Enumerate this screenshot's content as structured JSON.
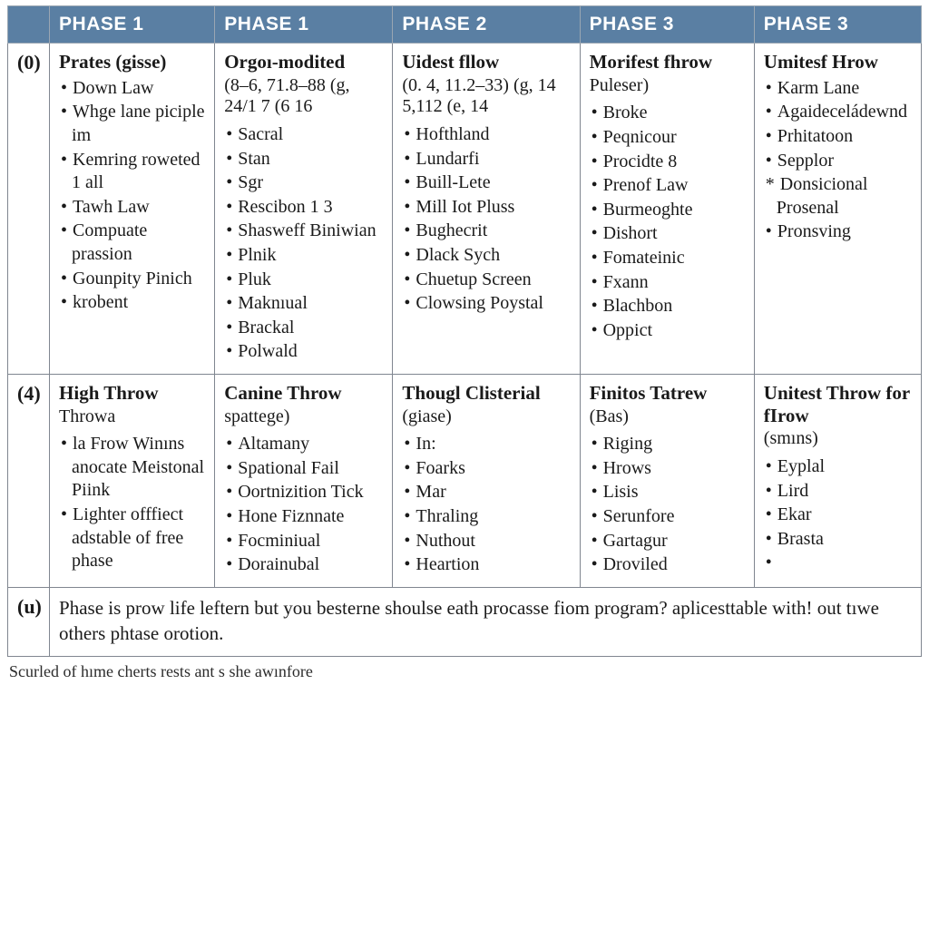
{
  "style": {
    "header_bg": "#5a7fa3",
    "header_fg": "#ffffff",
    "border_color": "#808690",
    "body_font": "Georgia",
    "header_font": "Arial",
    "header_fontsize_pt": 16,
    "title_fontsize_pt": 16,
    "body_fontsize_pt": 15,
    "page_bg": "#ffffff"
  },
  "headers": [
    "PHASE 1",
    "PHASE 1",
    "PHASE 2",
    "PHASE 3",
    "PHASE 3"
  ],
  "rows": [
    {
      "label": "(0)",
      "cells": [
        {
          "title": "Prates (gisse)",
          "sub": "",
          "items": [
            "Down Law",
            "Whge lane piciple im",
            "Kemring roweted 1 all",
            "Tawh Law",
            "Compuate prassion",
            "Gounpity Pinich",
            "krobent"
          ]
        },
        {
          "title": "Orgoı-modited",
          "sub": "(8–6, 71.8–88 (g, 24/1 7 (6 16",
          "items": [
            "Sacral",
            "Stan",
            "Sgr",
            "Rescibon 1 3",
            "Shasweff Biniwian",
            "Plnik",
            "Pluk",
            "Maknıual",
            "Brackal",
            "Polwald"
          ]
        },
        {
          "title": "Uidest fllow",
          "sub": "(0. 4, 11.2–33) (g, 14 5,112 (e, 14",
          "items": [
            "Hofthland",
            "Lundarfi",
            "Buill-Lete",
            "Mill Iot Pluss",
            "Bughecrit",
            "Dlack Sych",
            "Chuetup Screen",
            "Clowsing Poystal"
          ]
        },
        {
          "title": "Morifest fhrow",
          "sub": "Puleser)",
          "items": [
            "Broke",
            "Peqnicour",
            "Procidte 8",
            "Prenof Law",
            "Burmeoghte",
            "Dishort",
            "Fomateinic",
            "Fxann",
            "Blachbon",
            "Oppict"
          ]
        },
        {
          "title": "Umitesf Hrow",
          "sub": "",
          "items": [
            "Karm Lane",
            "Agaideceládewnd",
            "Prhitatoon",
            "Sepplor",
            "Donsicional Prosenal",
            "Pronsving"
          ],
          "star_index": 4
        }
      ]
    },
    {
      "label": "(4)",
      "cells": [
        {
          "title": "High Throw",
          "sub": "Throwa",
          "items": [
            "la Frow Winıns anocate Meistonal Piink",
            "Lighter offfiect adstable of free phase"
          ]
        },
        {
          "title": "Canine Throw",
          "sub": "spattege)",
          "items": [
            "Altamany",
            "Spational Fail",
            "Oortnizition Tick",
            "Hone Fiznnate",
            "Focminiual",
            "Dorainubal"
          ]
        },
        {
          "title": "Thougl Clisterial",
          "sub": "(giase)",
          "items": [
            "In:",
            "Foarks",
            "Mar",
            "Thraling",
            "Nuthout",
            "Heartion"
          ]
        },
        {
          "title": "Finitos Tatrew",
          "sub": "(Bas)",
          "items": [
            "Riging",
            "Hrows",
            "Lisis",
            "Serunfore",
            "Gartagur",
            "Droviled"
          ]
        },
        {
          "title": "Unitest Throw for fIrow",
          "sub": "(smıns)",
          "items": [
            "Eyplal",
            "Lird",
            "Ekar",
            "Brasta",
            ""
          ]
        }
      ]
    }
  ],
  "footer": {
    "label": "(u)",
    "text": "Phase is prow life leftern but you besterne shoulse eath procasse fiom program? aplicesttable with! out tıwe others phtase orotion."
  },
  "caption": "Scurled of hıme cherts rests ant s she awınfore"
}
